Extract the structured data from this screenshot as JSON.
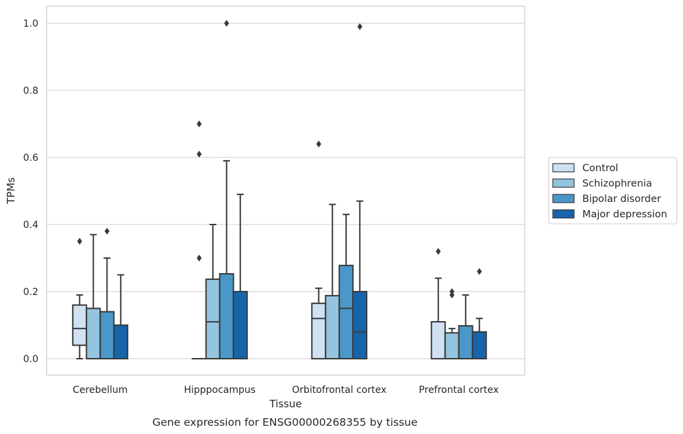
{
  "chart_data": {
    "type": "box",
    "xlabel": "Tissue",
    "ylabel": "TPMs",
    "caption": "Gene expression for ENSG00000268355 by tissue",
    "ylim": [
      -0.05,
      1.05
    ],
    "yticks": [
      "0.0",
      "0.2",
      "0.4",
      "0.6",
      "0.8",
      "1.0"
    ],
    "grid": true,
    "legend_position": "right",
    "categories": [
      "Cerebellum",
      "Hipppocampus",
      "Orbitofrontal cortex",
      "Prefrontal cortex"
    ],
    "series": [
      {
        "name": "Control",
        "color": "#d0e1f2",
        "boxes": [
          {
            "min": 0.0,
            "q1": 0.04,
            "median": 0.09,
            "q3": 0.16,
            "max": 0.19,
            "outliers": [
              0.35
            ]
          },
          {
            "min": 0.0,
            "q1": 0.0,
            "median": 0.0,
            "q3": 0.0,
            "max": 0.0,
            "outliers": [
              0.3,
              0.61,
              0.7
            ]
          },
          {
            "min": 0.0,
            "q1": 0.0,
            "median": 0.12,
            "q3": 0.165,
            "max": 0.21,
            "outliers": [
              0.64
            ]
          },
          {
            "min": 0.0,
            "q1": 0.0,
            "median": 0.0,
            "q3": 0.11,
            "max": 0.24,
            "outliers": [
              0.32
            ]
          }
        ]
      },
      {
        "name": "Schizophrenia",
        "color": "#94c4df",
        "boxes": [
          {
            "min": 0.0,
            "q1": 0.0,
            "median": 0.0,
            "q3": 0.15,
            "max": 0.37,
            "outliers": []
          },
          {
            "min": 0.0,
            "q1": 0.0,
            "median": 0.11,
            "q3": 0.237,
            "max": 0.4,
            "outliers": []
          },
          {
            "min": 0.0,
            "q1": 0.0,
            "median": 0.0,
            "q3": 0.188,
            "max": 0.46,
            "outliers": []
          },
          {
            "min": 0.0,
            "q1": 0.0,
            "median": 0.0,
            "q3": 0.077,
            "max": 0.09,
            "outliers": [
              0.19,
              0.2
            ]
          }
        ]
      },
      {
        "name": "Bipolar disorder",
        "color": "#4a98c9",
        "boxes": [
          {
            "min": 0.0,
            "q1": 0.0,
            "median": 0.0,
            "q3": 0.14,
            "max": 0.3,
            "outliers": [
              0.38
            ]
          },
          {
            "min": 0.0,
            "q1": 0.0,
            "median": 0.0,
            "q3": 0.253,
            "max": 0.59,
            "outliers": [
              1.0
            ]
          },
          {
            "min": 0.0,
            "q1": 0.0,
            "median": 0.15,
            "q3": 0.278,
            "max": 0.43,
            "outliers": []
          },
          {
            "min": 0.0,
            "q1": 0.0,
            "median": 0.0,
            "q3": 0.098,
            "max": 0.19,
            "outliers": []
          }
        ]
      },
      {
        "name": "Major depression",
        "color": "#1764ab",
        "boxes": [
          {
            "min": 0.0,
            "q1": 0.0,
            "median": 0.0,
            "q3": 0.1,
            "max": 0.25,
            "outliers": []
          },
          {
            "min": 0.0,
            "q1": 0.0,
            "median": 0.0,
            "q3": 0.2,
            "max": 0.49,
            "outliers": []
          },
          {
            "min": 0.0,
            "q1": 0.0,
            "median": 0.08,
            "q3": 0.2,
            "max": 0.47,
            "outliers": [
              0.99
            ]
          },
          {
            "min": 0.0,
            "q1": 0.0,
            "median": 0.0,
            "q3": 0.08,
            "max": 0.12,
            "outliers": [
              0.26
            ]
          }
        ]
      }
    ]
  }
}
